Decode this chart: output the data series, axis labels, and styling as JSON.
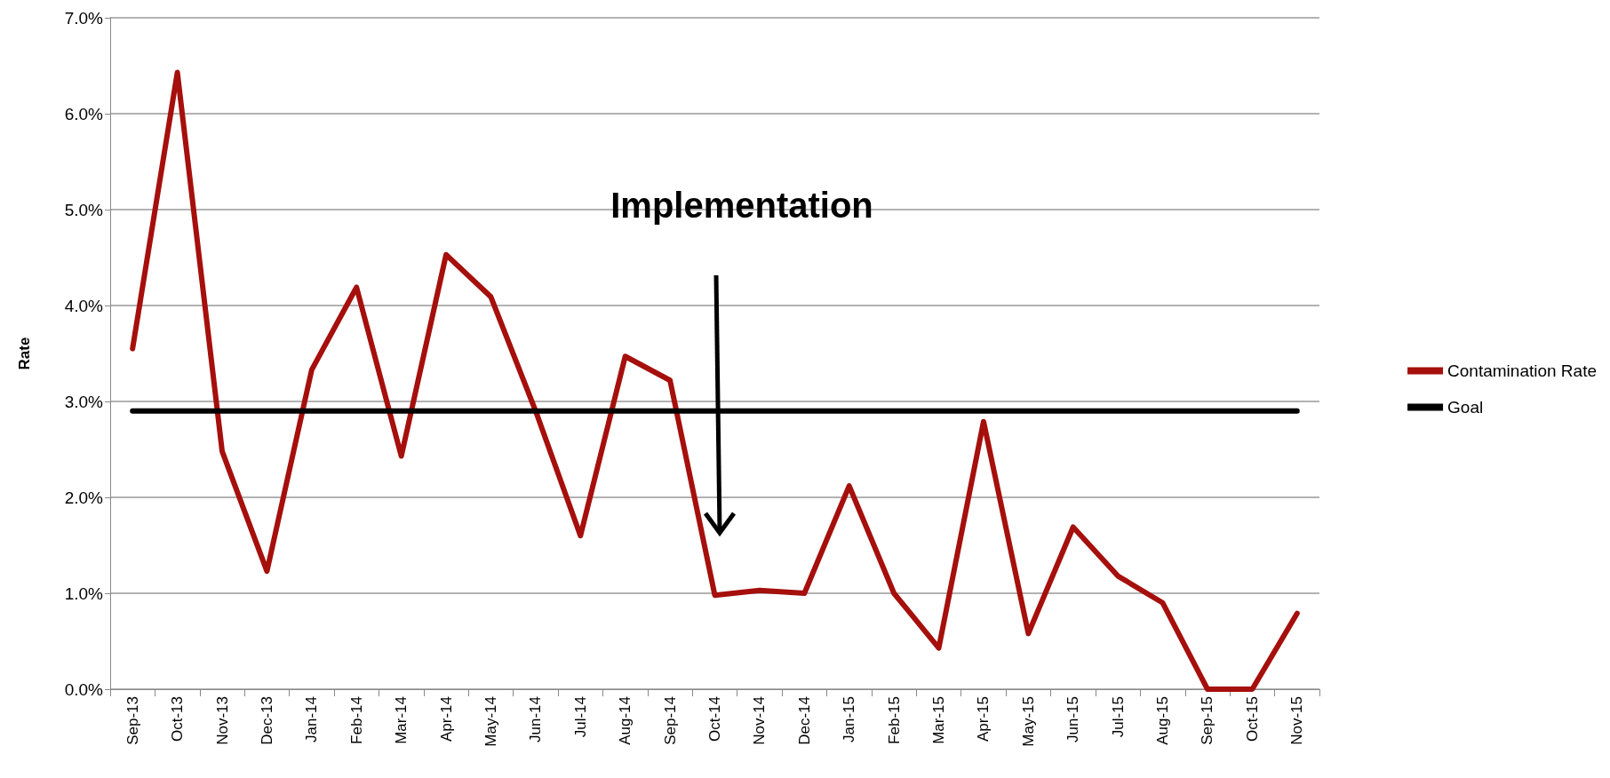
{
  "chart_data": {
    "type": "line",
    "ylabel": "Rate",
    "categories": [
      "Sep-13",
      "Oct-13",
      "Nov-13",
      "Dec-13",
      "Jan-14",
      "Feb-14",
      "Mar-14",
      "Apr-14",
      "May-14",
      "Jun-14",
      "Jul-14",
      "Aug-14",
      "Sep-14",
      "Oct-14",
      "Nov-14",
      "Dec-14",
      "Jan-15",
      "Feb-15",
      "Mar-15",
      "Apr-15",
      "May-15",
      "Jun-15",
      "Jul-15",
      "Aug-15",
      "Sep-15",
      "Oct-15",
      "Nov-15"
    ],
    "series": [
      {
        "name": "Contamination Rate",
        "color": "#a50f0c",
        "values": [
          3.55,
          6.43,
          2.48,
          1.23,
          3.33,
          4.19,
          2.43,
          4.53,
          4.09,
          2.9,
          1.6,
          3.47,
          3.22,
          0.98,
          1.03,
          1.0,
          2.12,
          1.0,
          0.43,
          2.79,
          0.58,
          1.69,
          1.18,
          0.9,
          0,
          0,
          0.79
        ]
      },
      {
        "name": "Goal",
        "color": "#000000",
        "values": [
          2.9,
          2.9,
          2.9,
          2.9,
          2.9,
          2.9,
          2.9,
          2.9,
          2.9,
          2.9,
          2.9,
          2.9,
          2.9,
          2.9,
          2.9,
          2.9,
          2.9,
          2.9,
          2.9,
          2.9,
          2.9,
          2.9,
          2.9,
          2.9,
          2.9,
          2.9,
          2.9
        ]
      }
    ],
    "ylim": [
      0,
      7
    ],
    "yticks": [
      {
        "value": 0,
        "label": "0.0%"
      },
      {
        "value": 1,
        "label": "1.0%"
      },
      {
        "value": 2,
        "label": "2.0%"
      },
      {
        "value": 3,
        "label": "3.0%"
      },
      {
        "value": 4,
        "label": "4.0%"
      },
      {
        "value": 5,
        "label": "5.0%"
      },
      {
        "value": 6,
        "label": "6.0%"
      },
      {
        "value": 7,
        "label": "7.0%"
      }
    ],
    "grid": "y",
    "legend": "right",
    "marker": "none",
    "line_style": "solid",
    "annotations": [
      "Implementation"
    ]
  }
}
